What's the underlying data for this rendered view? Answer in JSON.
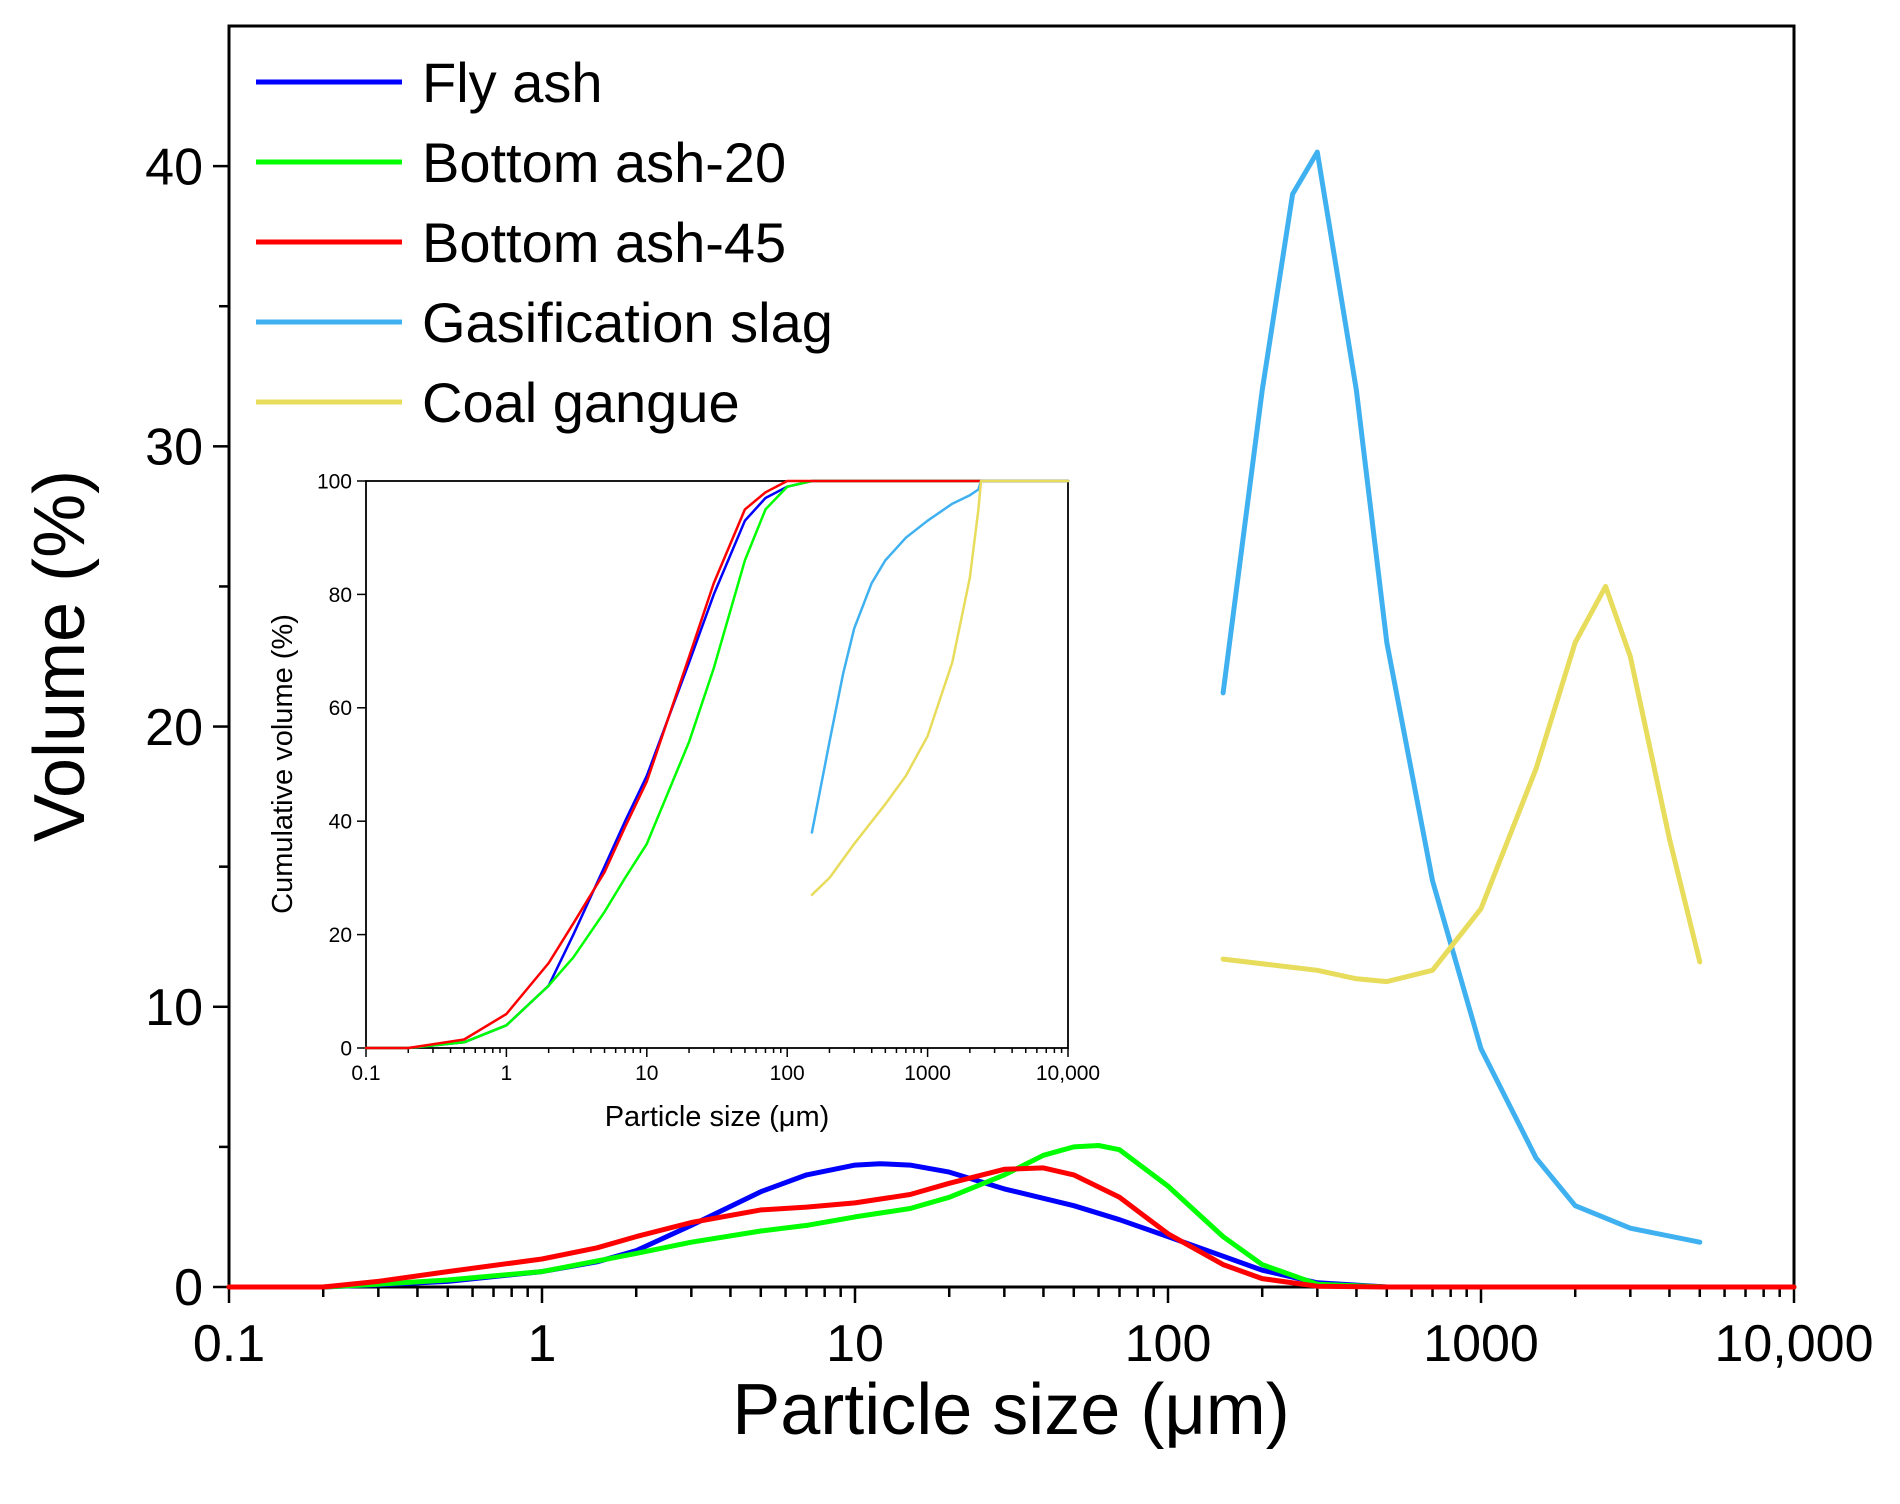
{
  "chart_data": [
    {
      "type": "line",
      "xscale": "log",
      "xlabel": "Particle size (μm)",
      "ylabel": "Volume (%)",
      "xlim": [
        0.1,
        10000
      ],
      "ylim": [
        0,
        45
      ],
      "xticks": [
        {
          "value": 0.1,
          "label": "0.1"
        },
        {
          "value": 1,
          "label": "1"
        },
        {
          "value": 10,
          "label": "10"
        },
        {
          "value": 100,
          "label": "100"
        },
        {
          "value": 1000,
          "label": "1000"
        },
        {
          "value": 10000,
          "label": "10,000"
        }
      ],
      "yticks": [
        {
          "value": 0,
          "label": "0"
        },
        {
          "value": 10,
          "label": "10"
        },
        {
          "value": 20,
          "label": "20"
        },
        {
          "value": 30,
          "label": "30"
        },
        {
          "value": 40,
          "label": "40"
        }
      ],
      "legend_position": "top-left",
      "series": [
        {
          "name": "Fly ash",
          "color": "#0000ff",
          "x": [
            0.1,
            0.2,
            0.3,
            0.5,
            1,
            1.5,
            2,
            3,
            5,
            7,
            10,
            12,
            15,
            20,
            30,
            50,
            70,
            100,
            150,
            200,
            300,
            500,
            1000,
            10000
          ],
          "y": [
            0,
            0,
            0.08,
            0.2,
            0.55,
            0.9,
            1.3,
            2.2,
            3.4,
            4.0,
            4.35,
            4.4,
            4.35,
            4.1,
            3.5,
            2.9,
            2.4,
            1.8,
            1.1,
            0.6,
            0.15,
            0,
            0,
            0
          ]
        },
        {
          "name": "Bottom ash-20",
          "color": "#00ff00",
          "x": [
            0.1,
            0.2,
            0.3,
            0.5,
            1,
            2,
            3,
            5,
            7,
            10,
            15,
            20,
            30,
            40,
            50,
            60,
            70,
            100,
            150,
            200,
            300,
            500,
            1000,
            10000
          ],
          "y": [
            0,
            0,
            0.1,
            0.25,
            0.55,
            1.2,
            1.6,
            2.0,
            2.2,
            2.5,
            2.8,
            3.2,
            4.0,
            4.7,
            5.0,
            5.05,
            4.9,
            3.6,
            1.8,
            0.8,
            0.1,
            0,
            0,
            0
          ]
        },
        {
          "name": "Bottom ash-45",
          "color": "#ff0000",
          "x": [
            0.1,
            0.2,
            0.3,
            0.5,
            1,
            1.5,
            2,
            3,
            5,
            7,
            10,
            15,
            20,
            30,
            40,
            50,
            70,
            100,
            150,
            200,
            300,
            500,
            1000,
            10000
          ],
          "y": [
            0,
            0,
            0.2,
            0.55,
            1.0,
            1.4,
            1.8,
            2.3,
            2.75,
            2.85,
            3.0,
            3.3,
            3.7,
            4.2,
            4.25,
            4.0,
            3.2,
            1.9,
            0.8,
            0.3,
            0.03,
            0,
            0,
            0
          ]
        },
        {
          "name": "Gasification slag",
          "color": "#3fb1f0",
          "x": [
            150,
            200,
            250,
            300,
            400,
            500,
            700,
            1000,
            1500,
            2000,
            3000,
            5000
          ],
          "y": [
            21.2,
            32,
            39,
            40.5,
            32,
            23,
            14.5,
            8.5,
            4.6,
            2.9,
            2.1,
            1.6
          ]
        },
        {
          "name": "Coal gangue",
          "color": "#e8dc5c",
          "x": [
            150,
            300,
            400,
            500,
            700,
            1000,
            1500,
            2000,
            2500,
            3000,
            4000,
            5000
          ],
          "y": [
            11.7,
            11.3,
            11.0,
            10.9,
            11.3,
            13.5,
            18.5,
            23,
            25,
            22.5,
            16,
            11.6
          ]
        }
      ]
    },
    {
      "type": "line",
      "xscale": "log",
      "xlabel": "Particle size (μm)",
      "ylabel": "Cumulative volume (%)",
      "xlim": [
        0.1,
        10000
      ],
      "ylim": [
        0,
        100
      ],
      "xticks": [
        {
          "value": 0.1,
          "label": "0.1"
        },
        {
          "value": 1,
          "label": "1"
        },
        {
          "value": 10,
          "label": "10"
        },
        {
          "value": 100,
          "label": "100"
        },
        {
          "value": 1000,
          "label": "1000"
        },
        {
          "value": 10000,
          "label": "10,000"
        }
      ],
      "yticks": [
        {
          "value": 0,
          "label": "0"
        },
        {
          "value": 20,
          "label": "20"
        },
        {
          "value": 40,
          "label": "40"
        },
        {
          "value": 60,
          "label": "60"
        },
        {
          "value": 80,
          "label": "80"
        },
        {
          "value": 100,
          "label": "100"
        }
      ],
      "series": [
        {
          "name": "Fly ash",
          "color": "#0000ff",
          "x": [
            0.1,
            0.2,
            0.5,
            1,
            2,
            3,
            5,
            7,
            10,
            20,
            30,
            50,
            70,
            100,
            150,
            200,
            10000
          ],
          "y": [
            0,
            0,
            1,
            4,
            11,
            20,
            32,
            40,
            48,
            68,
            80,
            93,
            97,
            99,
            100,
            100,
            100
          ]
        },
        {
          "name": "Bottom ash-20",
          "color": "#00ff00",
          "x": [
            0.1,
            0.2,
            0.5,
            1,
            2,
            3,
            5,
            7,
            10,
            20,
            30,
            50,
            70,
            100,
            150,
            200,
            10000
          ],
          "y": [
            0,
            0,
            1,
            4,
            11,
            16,
            24,
            30,
            36,
            54,
            67,
            86,
            95,
            99,
            100,
            100,
            100
          ]
        },
        {
          "name": "Bottom ash-45",
          "color": "#ff0000",
          "x": [
            0.1,
            0.2,
            0.5,
            1,
            2,
            3,
            5,
            7,
            10,
            20,
            30,
            50,
            70,
            100,
            150,
            10000
          ],
          "y": [
            0,
            0,
            1.5,
            6,
            15,
            22,
            31,
            39,
            47,
            69,
            82,
            95,
            98,
            100,
            100,
            100
          ]
        },
        {
          "name": "Gasification slag",
          "color": "#3fb1f0",
          "x": [
            150,
            200,
            250,
            300,
            400,
            500,
            700,
            1000,
            1500,
            2000,
            2300,
            2400,
            10000
          ],
          "y": [
            38,
            54,
            66,
            74,
            82,
            86,
            90,
            93,
            96,
            97.5,
            98.5,
            100,
            100
          ]
        },
        {
          "name": "Coal gangue",
          "color": "#e8dc5c",
          "x": [
            150,
            200,
            300,
            500,
            700,
            1000,
            1500,
            2000,
            2300,
            2400,
            10000
          ],
          "y": [
            27,
            30,
            36,
            43,
            48,
            55,
            68,
            83,
            95,
            100,
            100
          ]
        }
      ]
    }
  ]
}
